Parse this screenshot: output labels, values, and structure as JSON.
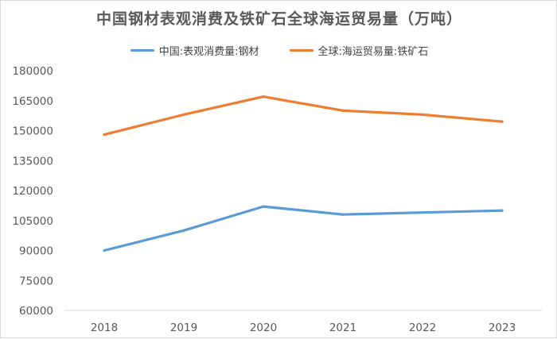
{
  "chart_data": {
    "type": "line",
    "title": "中国钢材表观消费及铁矿石全球海运贸易量（万吨）",
    "categories": [
      "2018",
      "2019",
      "2020",
      "2021",
      "2022",
      "2023"
    ],
    "series": [
      {
        "name": "中国:表观消费量:钢材",
        "color": "#5b9bd5",
        "values": [
          90000,
          100000,
          112000,
          108000,
          109000,
          110000
        ]
      },
      {
        "name": "全球:海运贸易量:铁矿石",
        "color": "#ed7d31",
        "values": [
          148000,
          158000,
          167000,
          160000,
          158000,
          154500
        ]
      }
    ],
    "yticks": [
      "180000",
      "165000",
      "150000",
      "135000",
      "120000",
      "105000",
      "90000",
      "75000",
      "60000"
    ],
    "ylim": [
      60000,
      180000
    ],
    "xlabel": "",
    "ylabel": "",
    "grid": false,
    "legend_position": "top"
  }
}
